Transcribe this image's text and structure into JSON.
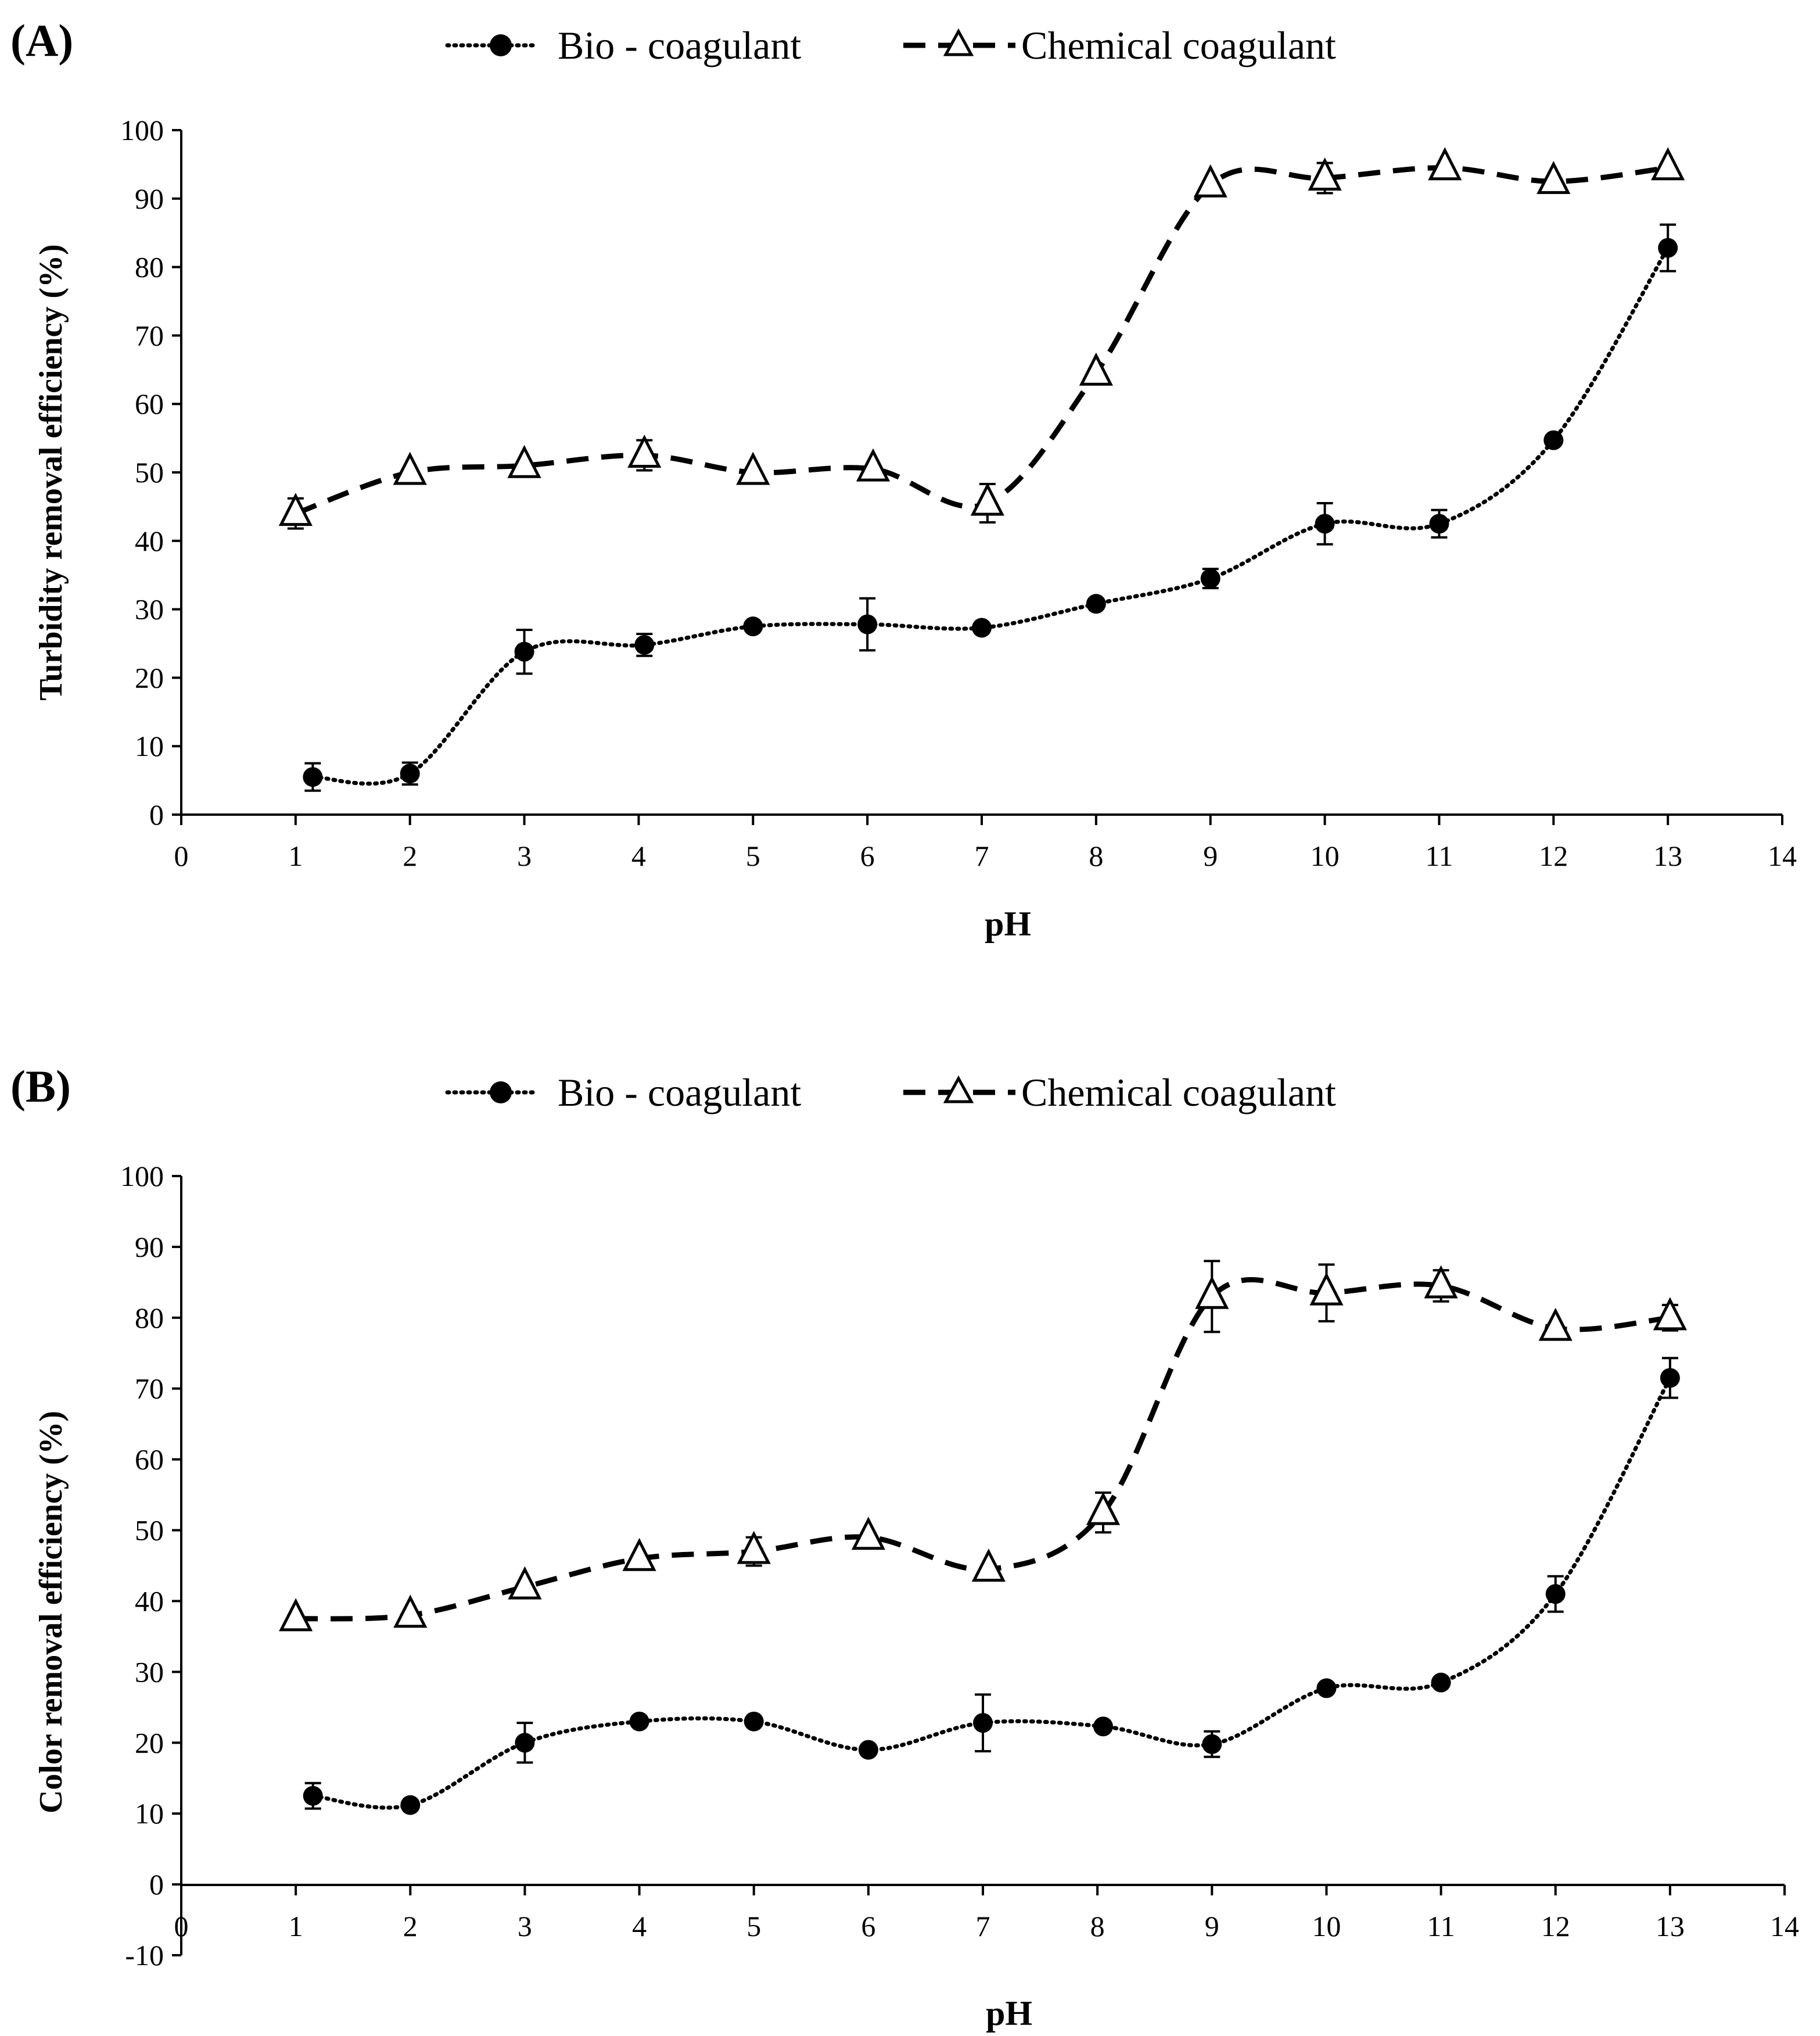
{
  "chart_data": [
    {
      "type": "line",
      "panel_label": "(A)",
      "title": "",
      "xlabel": "pH",
      "ylabel": "Turbidity  removal efficiency (%)",
      "xlim": [
        0,
        14
      ],
      "ylim": [
        0,
        100
      ],
      "xticks": [
        "0",
        "1",
        "2",
        "3",
        "4",
        "5",
        "6",
        "7",
        "8",
        "9",
        "10",
        "11",
        "12",
        "13",
        "14"
      ],
      "yticks": [
        "0",
        "10",
        "20",
        "30",
        "40",
        "50",
        "60",
        "70",
        "80",
        "90",
        "100"
      ],
      "grid": false,
      "legend_position": "top-center",
      "series": [
        {
          "name": "Bio - coagulant",
          "style": "dotted",
          "marker": "filled-circle",
          "x": [
            1.15,
            2.0,
            3.0,
            4.05,
            5.0,
            6.0,
            7.0,
            8.0,
            9.0,
            10.0,
            11.0,
            12.0,
            13.0
          ],
          "y": [
            5.5,
            6.0,
            23.8,
            24.8,
            27.5,
            27.8,
            27.3,
            30.8,
            34.5,
            42.5,
            42.5,
            54.7,
            82.8
          ],
          "err": [
            2.0,
            1.6,
            3.2,
            1.6,
            0,
            3.8,
            0,
            0,
            1.4,
            3.0,
            2.0,
            0,
            3.4
          ]
        },
        {
          "name": "Chemical coagulant",
          "style": "dashed",
          "marker": "open-triangle",
          "x": [
            1.0,
            2.0,
            3.0,
            4.05,
            5.0,
            6.05,
            7.05,
            8.0,
            9.0,
            10.0,
            11.05,
            12.0,
            13.0
          ],
          "y": [
            44.0,
            50.0,
            51.0,
            52.5,
            50.0,
            50.5,
            45.5,
            64.5,
            92.0,
            93.0,
            94.5,
            92.5,
            94.5
          ],
          "err": [
            2.2,
            0,
            0,
            2.2,
            0,
            0,
            2.8,
            0,
            0,
            2.2,
            0,
            0,
            0
          ]
        }
      ]
    },
    {
      "type": "line",
      "panel_label": "(B)",
      "title": "",
      "xlabel": "pH",
      "ylabel": "Color removal efficiency (%)",
      "xlim": [
        0,
        14
      ],
      "ylim": [
        -10,
        100
      ],
      "xticks": [
        "0",
        "1",
        "2",
        "3",
        "4",
        "5",
        "6",
        "7",
        "8",
        "9",
        "10",
        "11",
        "12",
        "13",
        "14"
      ],
      "yticks": [
        "-10",
        "0",
        "10",
        "20",
        "30",
        "40",
        "50",
        "60",
        "70",
        "80",
        "90",
        "100"
      ],
      "grid": false,
      "legend_position": "top-center",
      "series": [
        {
          "name": "Bio - coagulant",
          "style": "dotted",
          "marker": "filled-circle",
          "x": [
            1.15,
            2.0,
            3.0,
            4.0,
            5.0,
            6.0,
            7.0,
            8.05,
            9.0,
            10.0,
            11.0,
            12.0,
            13.0
          ],
          "y": [
            12.5,
            11.2,
            20.0,
            23.0,
            23.0,
            19.0,
            22.8,
            22.3,
            19.8,
            27.7,
            28.5,
            41.0,
            71.5
          ],
          "err": [
            1.8,
            0,
            2.8,
            0,
            0,
            0,
            4.0,
            0,
            1.8,
            0,
            0,
            2.5,
            2.8
          ]
        },
        {
          "name": "Chemical coagulant",
          "style": "dashed",
          "marker": "open-triangle",
          "x": [
            1.0,
            2.0,
            3.0,
            4.0,
            5.0,
            6.0,
            7.05,
            8.05,
            9.0,
            10.0,
            11.0,
            12.0,
            13.0
          ],
          "y": [
            37.5,
            38.0,
            42.0,
            46.0,
            47.0,
            49.0,
            44.5,
            52.5,
            83.0,
            83.5,
            84.5,
            78.5,
            80.0
          ],
          "err": [
            0,
            0,
            0,
            0,
            2.0,
            0,
            0,
            2.8,
            5.0,
            4.0,
            2.2,
            0,
            1.8
          ]
        }
      ]
    }
  ]
}
